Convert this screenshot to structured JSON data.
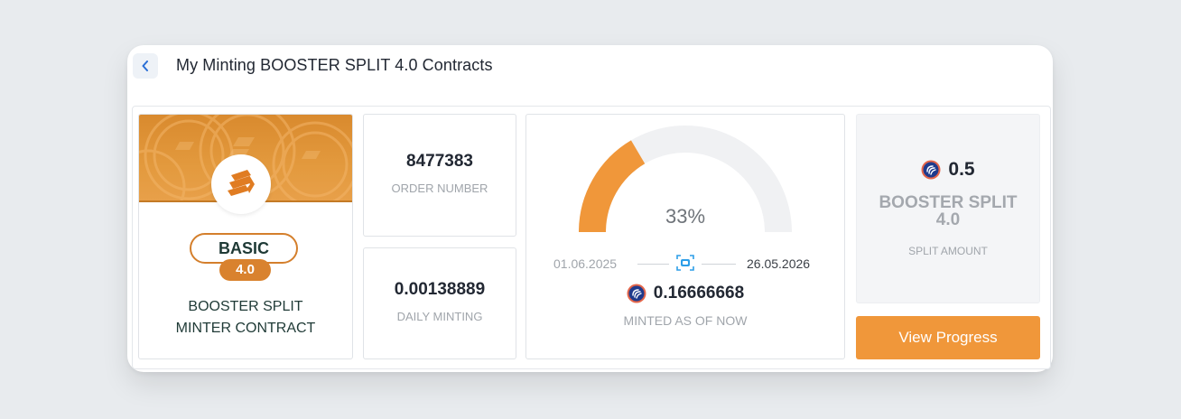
{
  "header": {
    "title": "My Minting BOOSTER SPLIT 4.0 Contracts",
    "back_icon": "chevron-left-icon"
  },
  "contract": {
    "tier": "BASIC",
    "version": "4.0",
    "desc_line1": "BOOSTER SPLIT",
    "desc_line2": "MINTER CONTRACT"
  },
  "order": {
    "value": "8477383",
    "label": "ORDER NUMBER"
  },
  "daily": {
    "value": "0.00138889",
    "label": "DAILY MINTING"
  },
  "progress": {
    "percent_label": "33%",
    "fraction": 0.33,
    "start_date": "01.06.2025",
    "end_date": "26.05.2026",
    "minted_value": "0.16666668",
    "minted_label": "MINTED AS OF NOW"
  },
  "split": {
    "value": "0.5",
    "name_line1": "BOOSTER SPLIT",
    "name_line2": "4.0",
    "label": "SPLIT AMOUNT"
  },
  "actions": {
    "view_progress": "View Progress"
  },
  "colors": {
    "accent": "#f0973a",
    "banner": "#e39a3e",
    "dark_text": "#222833",
    "muted_text": "#a0a5ab",
    "coin_blue": "#1f3a8c"
  }
}
